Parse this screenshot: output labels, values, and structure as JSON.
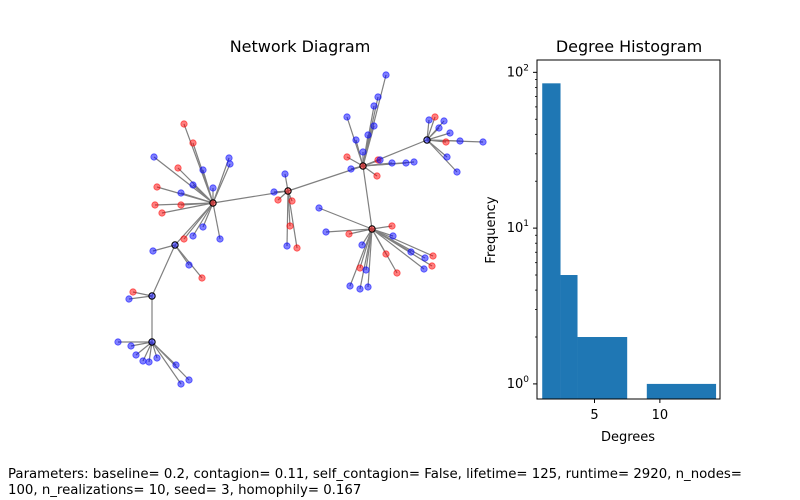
{
  "chart_data": [
    {
      "type": "network",
      "title": "Network Diagram",
      "node_colors": {
        "blue": "#0000ff",
        "red": "#ff0000"
      },
      "edge_color": "#808080"
    },
    {
      "type": "bar",
      "title": "Degree Histogram",
      "xlabel": "Degrees",
      "ylabel": "Frequency",
      "y_scale": "log",
      "ylim": [
        0.8,
        120
      ],
      "xlim": [
        0.6,
        14.6
      ],
      "x_ticks": [
        "5",
        "10"
      ],
      "y_ticks": [
        "10^0",
        "10^1",
        "10^2"
      ],
      "bar_color": "#1f77b4",
      "bars": [
        {
          "x0": 1.0,
          "x1": 2.4,
          "value": 85
        },
        {
          "x0": 2.4,
          "x1": 3.7,
          "value": 5
        },
        {
          "x0": 3.7,
          "x1": 7.5,
          "value": 2
        },
        {
          "x0": 7.5,
          "x1": 9.0,
          "value": 0
        },
        {
          "x0": 9.0,
          "x1": 14.3,
          "value": 1
        }
      ]
    }
  ],
  "footer": {
    "text": "Parameters: baseline= 0.2, contagion= 0.11, self_contagion= False, lifetime= 125, runtime= 2920, n_nodes=\n100, n_realizations= 10, seed= 3, homophily= 0.167"
  }
}
